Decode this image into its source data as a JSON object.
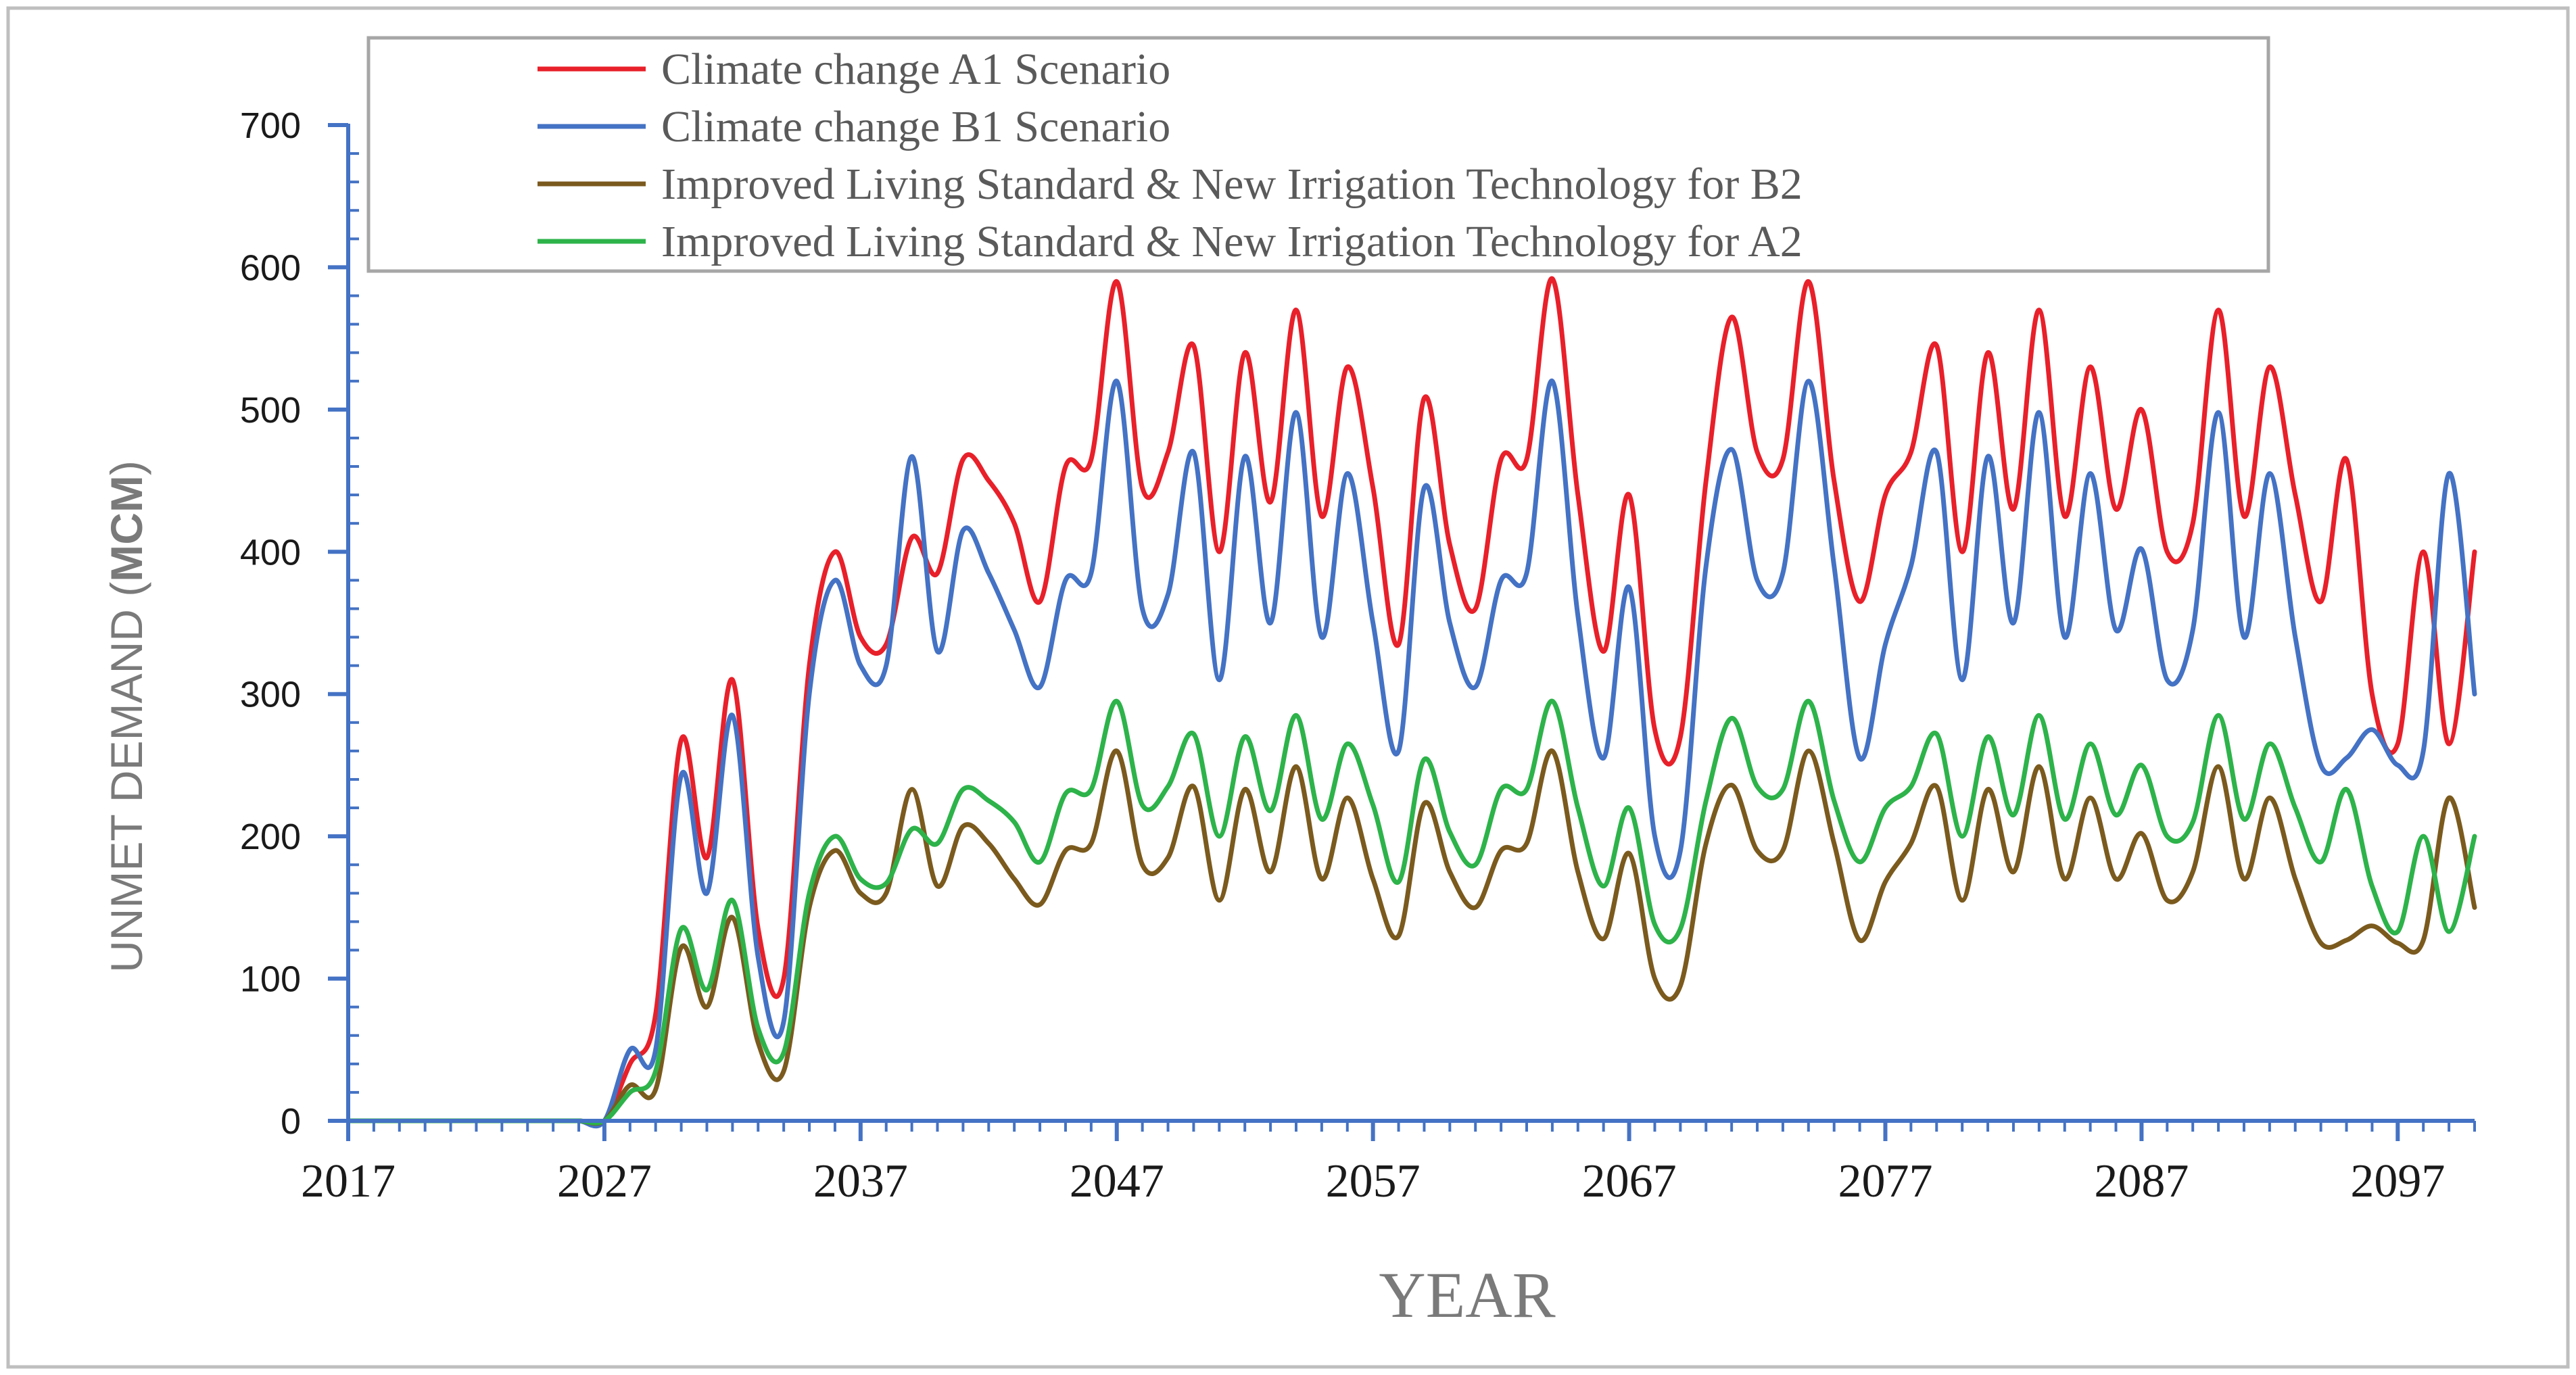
{
  "chart_data": {
    "type": "line",
    "title": "",
    "xlabel": "YEAR",
    "ylabel": {
      "prefix": "UNMET DEMAND (",
      "unit": "MCM",
      "suffix": ")"
    },
    "xlim": [
      2017,
      2100
    ],
    "ylim": [
      0,
      700
    ],
    "x_ticks": [
      2017,
      2027,
      2037,
      2047,
      2057,
      2067,
      2077,
      2087,
      2097
    ],
    "y_ticks": [
      0,
      100,
      200,
      300,
      400,
      500,
      600,
      700
    ],
    "grid": false,
    "legend_position": "top",
    "colors": {
      "axis": "#4472c4",
      "frame": "#bfbfbf",
      "legend_border": "#a6a6a6"
    },
    "x": [
      2017,
      2018,
      2019,
      2020,
      2021,
      2022,
      2023,
      2024,
      2025,
      2026,
      2027,
      2028,
      2029,
      2030,
      2031,
      2032,
      2033,
      2034,
      2035,
      2036,
      2037,
      2038,
      2039,
      2040,
      2041,
      2042,
      2043,
      2044,
      2045,
      2046,
      2047,
      2048,
      2049,
      2050,
      2051,
      2052,
      2053,
      2054,
      2055,
      2056,
      2057,
      2058,
      2059,
      2060,
      2061,
      2062,
      2063,
      2064,
      2065,
      2066,
      2067,
      2068,
      2069,
      2070,
      2071,
      2072,
      2073,
      2074,
      2075,
      2076,
      2077,
      2078,
      2079,
      2080,
      2081,
      2082,
      2083,
      2084,
      2085,
      2086,
      2087,
      2088,
      2089,
      2090,
      2091,
      2092,
      2093,
      2094,
      2095,
      2096,
      2097,
      2098,
      2099,
      2100
    ],
    "series": [
      {
        "name": "Climate change A1 Scenario",
        "color": "#e8202a",
        "values": [
          0,
          0,
          0,
          0,
          0,
          0,
          0,
          0,
          0,
          0,
          0,
          40,
          75,
          268,
          185,
          310,
          135,
          100,
          320,
          400,
          340,
          335,
          410,
          385,
          465,
          450,
          420,
          365,
          460,
          465,
          590,
          445,
          470,
          545,
          400,
          540,
          435,
          570,
          425,
          530,
          445,
          335,
          508,
          405,
          360,
          465,
          465,
          592,
          440,
          330,
          440,
          275,
          270,
          450,
          565,
          470,
          465,
          590,
          450,
          365,
          440,
          470,
          545,
          400,
          540,
          430,
          570,
          425,
          530,
          430,
          500,
          400,
          420,
          570,
          425,
          530,
          440,
          365,
          465,
          300,
          265,
          400,
          265,
          400
        ]
      },
      {
        "name": "Climate change B1 Scenario",
        "color": "#4472c4",
        "values": [
          0,
          0,
          0,
          0,
          0,
          0,
          0,
          0,
          0,
          0,
          0,
          50,
          50,
          243,
          160,
          285,
          115,
          70,
          300,
          380,
          320,
          320,
          467,
          330,
          415,
          385,
          345,
          305,
          380,
          385,
          520,
          360,
          370,
          470,
          310,
          467,
          350,
          498,
          340,
          455,
          350,
          260,
          445,
          350,
          305,
          380,
          385,
          520,
          355,
          255,
          375,
          200,
          190,
          390,
          472,
          380,
          385,
          520,
          390,
          255,
          335,
          390,
          470,
          310,
          467,
          350,
          498,
          340,
          455,
          345,
          402,
          310,
          345,
          498,
          340,
          455,
          340,
          250,
          255,
          275,
          250,
          260,
          455,
          300
        ]
      },
      {
        "name": "Improved Living Standard & New Irrigation Technology for B2",
        "color": "#7b5a1e",
        "values": [
          0,
          0,
          0,
          0,
          0,
          0,
          0,
          0,
          0,
          0,
          0,
          25,
          22,
          122,
          80,
          143,
          55,
          35,
          150,
          190,
          160,
          160,
          233,
          165,
          207,
          195,
          170,
          152,
          190,
          195,
          260,
          180,
          185,
          235,
          155,
          233,
          175,
          249,
          170,
          227,
          170,
          130,
          223,
          175,
          150,
          190,
          195,
          260,
          175,
          128,
          188,
          100,
          95,
          195,
          236,
          190,
          190,
          260,
          195,
          127,
          168,
          195,
          235,
          155,
          233,
          175,
          249,
          170,
          227,
          170,
          202,
          155,
          175,
          249,
          170,
          227,
          170,
          125,
          127,
          137,
          125,
          127,
          227,
          150
        ]
      },
      {
        "name": "Improved Living Standard & New Irrigation Technology for A2",
        "color": "#2db34a",
        "values": [
          0,
          0,
          0,
          0,
          0,
          0,
          0,
          0,
          0,
          0,
          0,
          20,
          35,
          135,
          92,
          155,
          65,
          48,
          160,
          200,
          170,
          167,
          205,
          195,
          233,
          225,
          210,
          182,
          230,
          233,
          295,
          222,
          235,
          272,
          200,
          270,
          218,
          285,
          212,
          265,
          222,
          168,
          254,
          203,
          180,
          233,
          233,
          295,
          220,
          165,
          220,
          138,
          135,
          225,
          283,
          235,
          233,
          295,
          225,
          182,
          220,
          235,
          272,
          200,
          270,
          215,
          285,
          212,
          265,
          215,
          250,
          200,
          210,
          285,
          212,
          265,
          220,
          182,
          233,
          165,
          133,
          200,
          133,
          200
        ]
      }
    ]
  }
}
